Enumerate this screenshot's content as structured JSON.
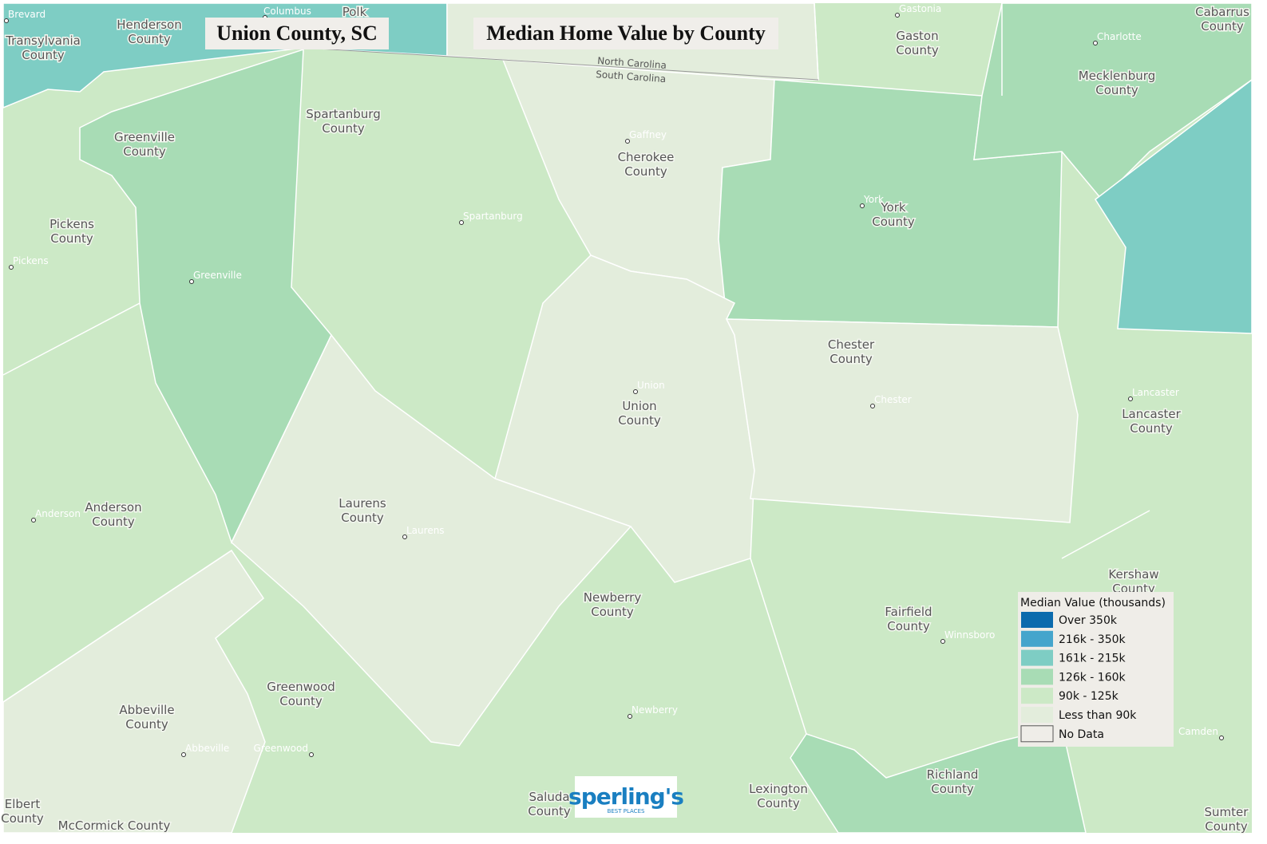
{
  "title": "Union County, SC",
  "subtitle": "Median Home Value by County",
  "state_labels": [
    "North Carolina",
    "South Carolina"
  ],
  "legend": {
    "title": "Median Value (thousands)",
    "items": [
      {
        "label": "Over 350k",
        "color": "#0b6bad"
      },
      {
        "label": "216k - 350k",
        "color": "#45a5cc"
      },
      {
        "label": "161k - 215k",
        "color": "#7ecdc4"
      },
      {
        "label": "126k - 160k",
        "color": "#a8dcb5"
      },
      {
        "label": "90k - 125k",
        "color": "#cce9c6"
      },
      {
        "label": "Less than 90k",
        "color": "#e3eddc"
      },
      {
        "label": "No Data",
        "color": "#efede8"
      }
    ]
  },
  "county_labels": [
    [
      "Transylvania",
      "County"
    ],
    [
      "Henderson",
      "County"
    ],
    [
      "Polk"
    ],
    [
      "Gaston",
      "County"
    ],
    [
      "Mecklenburg",
      "County"
    ],
    [
      "Cabarrus",
      "County"
    ],
    [
      "Spartanburg",
      "County"
    ],
    [
      "Greenville",
      "County"
    ],
    [
      "Cherokee",
      "County"
    ],
    [
      "York",
      "County"
    ],
    [
      "Pickens",
      "County"
    ],
    [
      "Chester",
      "County"
    ],
    [
      "Union",
      "County"
    ],
    [
      "Lancaster",
      "County"
    ],
    [
      "Anderson",
      "County"
    ],
    [
      "Laurens",
      "County"
    ],
    [
      "Kershaw",
      "County"
    ],
    [
      "Newberry",
      "County"
    ],
    [
      "Fairfield",
      "County"
    ],
    [
      "Greenwood",
      "County"
    ],
    [
      "Abbeville",
      "County"
    ],
    [
      "Richland",
      "County"
    ],
    [
      "Saluda",
      "County"
    ],
    [
      "Lexington",
      "County"
    ],
    [
      "Elbert",
      "County"
    ],
    [
      "McCormick County"
    ],
    [
      "Sumter",
      "County"
    ]
  ],
  "cities": [
    "Brevard",
    "Columbus",
    "Gastonia",
    "Charlotte",
    "Gaffney",
    "Spartanburg",
    "Greenville",
    "Pickens",
    "York",
    "Union",
    "Chester",
    "Lancaster",
    "Anderson",
    "Laurens",
    "Winnsboro",
    "Newberry",
    "Abbeville",
    "Greenwood",
    "Camden"
  ],
  "logo": {
    "name": "sperling's",
    "tagline": "BEST PLACES"
  }
}
